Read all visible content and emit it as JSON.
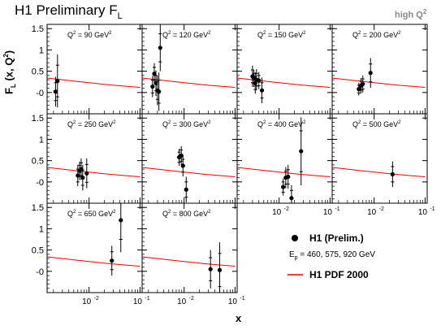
{
  "title": {
    "main": "H1 Preliminary F",
    "sub": "L"
  },
  "corner_label": {
    "main": "high Q",
    "sup": "2"
  },
  "colors": {
    "curve": "#ee0000",
    "axis": "#000000",
    "corner": "#888888"
  },
  "chart_data": {
    "type": "scatter",
    "ylabel": {
      "main": "F",
      "sub": "L",
      "rest": " (x, Q",
      "sup": "2",
      "close": ")"
    },
    "xlabel": "x",
    "xscale": "log",
    "xlim": [
      0.0015,
      0.11
    ],
    "ylim": [
      -0.5,
      1.6
    ],
    "y_ticks": [
      "-0",
      "0.5",
      "1",
      "1.5"
    ],
    "x_ticks": [
      {
        "value": 0.01,
        "base": "10",
        "exp": "-2"
      },
      {
        "value": 0.1,
        "base": "10",
        "exp": "-1"
      }
    ],
    "panels": [
      {
        "q2": "Q² = 90 GeV²",
        "q2_main": "Q",
        "q2_rest": " = 90 GeV",
        "curve": [
          [
            0.0015,
            0.34
          ],
          [
            0.003,
            0.3
          ],
          [
            0.006,
            0.26
          ],
          [
            0.012,
            0.22
          ],
          [
            0.025,
            0.18
          ],
          [
            0.05,
            0.15
          ],
          [
            0.1,
            0.12
          ]
        ],
        "points": [
          {
            "x": 0.0022,
            "y": 0.02,
            "err": 0.35,
            "xerr": 0.0002
          },
          {
            "x": 0.0024,
            "y": 0.27,
            "err": 0.62,
            "xerr": 0.0002
          }
        ]
      },
      {
        "q2": "Q² = 120 GeV²",
        "q2_main": "Q",
        "q2_rest": " = 120 GeV",
        "curve": [
          [
            0.0015,
            0.34
          ],
          [
            0.003,
            0.3
          ],
          [
            0.006,
            0.26
          ],
          [
            0.012,
            0.22
          ],
          [
            0.025,
            0.18
          ],
          [
            0.05,
            0.15
          ],
          [
            0.1,
            0.12
          ]
        ],
        "points": [
          {
            "x": 0.0024,
            "y": 0.14,
            "err": 0.25,
            "xerr": 0.0002
          },
          {
            "x": 0.0026,
            "y": 0.44,
            "err": 0.25,
            "xerr": 0.0002
          },
          {
            "x": 0.0028,
            "y": 0.22,
            "err": 0.3,
            "xerr": 0.0002
          },
          {
            "x": 0.003,
            "y": 0.05,
            "err": 0.35,
            "xerr": 0.0002
          },
          {
            "x": 0.0032,
            "y": 0.02,
            "err": 0.45,
            "xerr": 0.0002
          },
          {
            "x": 0.0034,
            "y": 1.05,
            "err": 0.55,
            "xerr": 0.0002
          }
        ]
      },
      {
        "q2": "Q² = 150 GeV²",
        "q2_main": "Q",
        "q2_rest": " = 150 GeV",
        "curve": [
          [
            0.0015,
            0.34
          ],
          [
            0.003,
            0.3
          ],
          [
            0.006,
            0.26
          ],
          [
            0.012,
            0.22
          ],
          [
            0.025,
            0.18
          ],
          [
            0.05,
            0.15
          ],
          [
            0.1,
            0.12
          ]
        ],
        "points": [
          {
            "x": 0.003,
            "y": 0.38,
            "err": 0.25,
            "xerr": 0.0002
          },
          {
            "x": 0.0032,
            "y": 0.33,
            "err": 0.2,
            "xerr": 0.0002
          },
          {
            "x": 0.0034,
            "y": 0.22,
            "err": 0.25,
            "xerr": 0.0002
          },
          {
            "x": 0.0036,
            "y": 0.3,
            "err": 0.25,
            "xerr": 0.0002
          },
          {
            "x": 0.004,
            "y": 0.28,
            "err": 0.2,
            "xerr": 0.0002
          },
          {
            "x": 0.0046,
            "y": 0.05,
            "err": 0.3,
            "xerr": 0.0003
          }
        ]
      },
      {
        "q2": "Q² = 200 GeV²",
        "q2_main": "Q",
        "q2_rest": " = 200 GeV",
        "curve": [
          [
            0.0015,
            0.34
          ],
          [
            0.003,
            0.3
          ],
          [
            0.006,
            0.26
          ],
          [
            0.012,
            0.22
          ],
          [
            0.025,
            0.18
          ],
          [
            0.05,
            0.15
          ],
          [
            0.1,
            0.12
          ]
        ],
        "points": [
          {
            "x": 0.005,
            "y": 0.08,
            "err": 0.15,
            "xerr": 0.0003
          },
          {
            "x": 0.0055,
            "y": 0.16,
            "err": 0.18,
            "xerr": 0.0003
          },
          {
            "x": 0.006,
            "y": 0.2,
            "err": 0.2,
            "xerr": 0.0003
          },
          {
            "x": 0.0085,
            "y": 0.46,
            "err": 0.35,
            "xerr": 0.0005
          }
        ]
      },
      {
        "q2": "Q² = 250 GeV²",
        "q2_main": "Q",
        "q2_rest": " = 250 GeV",
        "curve": [
          [
            0.0015,
            0.34
          ],
          [
            0.003,
            0.3
          ],
          [
            0.006,
            0.26
          ],
          [
            0.012,
            0.22
          ],
          [
            0.025,
            0.18
          ],
          [
            0.05,
            0.15
          ],
          [
            0.1,
            0.12
          ]
        ],
        "points": [
          {
            "x": 0.006,
            "y": 0.15,
            "err": 0.25,
            "xerr": 0.0003
          },
          {
            "x": 0.0065,
            "y": 0.26,
            "err": 0.22,
            "xerr": 0.0003
          },
          {
            "x": 0.007,
            "y": 0.3,
            "err": 0.25,
            "xerr": 0.0003
          },
          {
            "x": 0.0075,
            "y": 0.1,
            "err": 0.3,
            "xerr": 0.0003
          },
          {
            "x": 0.009,
            "y": 0.2,
            "err": 0.35,
            "xerr": 0.0005
          }
        ]
      },
      {
        "q2": "Q² = 300 GeV²",
        "q2_main": "Q",
        "q2_rest": " = 300 GeV",
        "curve": [
          [
            0.0015,
            0.34
          ],
          [
            0.003,
            0.3
          ],
          [
            0.006,
            0.26
          ],
          [
            0.012,
            0.22
          ],
          [
            0.025,
            0.18
          ],
          [
            0.05,
            0.15
          ],
          [
            0.1,
            0.12
          ]
        ],
        "points": [
          {
            "x": 0.008,
            "y": 0.58,
            "err": 0.2,
            "xerr": 0.0004
          },
          {
            "x": 0.0088,
            "y": 0.62,
            "err": 0.22,
            "xerr": 0.0004
          },
          {
            "x": 0.0095,
            "y": 0.38,
            "err": 0.25,
            "xerr": 0.0004
          },
          {
            "x": 0.011,
            "y": -0.18,
            "err": 0.3,
            "xerr": 0.0005
          }
        ]
      },
      {
        "q2": "Q² = 400 GeV²",
        "q2_main": "Q",
        "q2_rest": " = 400 GeV",
        "curve": [
          [
            0.0015,
            0.34
          ],
          [
            0.003,
            0.3
          ],
          [
            0.006,
            0.26
          ],
          [
            0.012,
            0.22
          ],
          [
            0.025,
            0.18
          ],
          [
            0.05,
            0.15
          ],
          [
            0.1,
            0.12
          ]
        ],
        "points": [
          {
            "x": 0.012,
            "y": -0.12,
            "err": 0.2,
            "xerr": 0.0006
          },
          {
            "x": 0.0135,
            "y": 0.1,
            "err": 0.25,
            "xerr": 0.0006
          },
          {
            "x": 0.015,
            "y": 0.12,
            "err": 0.28,
            "xerr": 0.0006
          },
          {
            "x": 0.0175,
            "y": -0.38,
            "err": 0.3,
            "xerr": 0.0008
          },
          {
            "x": 0.027,
            "y": 0.72,
            "err": 0.8,
            "xerr": 0.0012
          }
        ]
      },
      {
        "q2": "Q² = 500 GeV²",
        "q2_main": "Q",
        "q2_rest": " = 500 GeV",
        "curve": [
          [
            0.0015,
            0.34
          ],
          [
            0.003,
            0.3
          ],
          [
            0.006,
            0.26
          ],
          [
            0.012,
            0.22
          ],
          [
            0.025,
            0.18
          ],
          [
            0.05,
            0.15
          ],
          [
            0.1,
            0.12
          ]
        ],
        "points": [
          {
            "x": 0.023,
            "y": 0.18,
            "err": 0.3,
            "xerr": 0.001
          }
        ]
      },
      {
        "q2": "Q² = 650 GeV²",
        "q2_main": "Q",
        "q2_rest": " = 650 GeV",
        "curve": [
          [
            0.0015,
            0.34
          ],
          [
            0.003,
            0.3
          ],
          [
            0.006,
            0.26
          ],
          [
            0.012,
            0.22
          ],
          [
            0.025,
            0.18
          ],
          [
            0.05,
            0.15
          ],
          [
            0.1,
            0.12
          ]
        ],
        "points": [
          {
            "x": 0.028,
            "y": 0.25,
            "err": 0.35,
            "xerr": 0.0012
          },
          {
            "x": 0.042,
            "y": 1.2,
            "err": 0.75,
            "xerr": 0.002
          }
        ]
      },
      {
        "q2": "Q² = 800 GeV²",
        "q2_main": "Q",
        "q2_rest": " = 800 GeV",
        "curve": [
          [
            0.0015,
            0.34
          ],
          [
            0.003,
            0.3
          ],
          [
            0.006,
            0.26
          ],
          [
            0.012,
            0.22
          ],
          [
            0.025,
            0.18
          ],
          [
            0.05,
            0.15
          ],
          [
            0.1,
            0.12
          ]
        ],
        "points": [
          {
            "x": 0.033,
            "y": 0.05,
            "err": 0.45,
            "xerr": 0.0015
          },
          {
            "x": 0.05,
            "y": 0.03,
            "err": 0.65,
            "xerr": 0.0025
          }
        ]
      }
    ],
    "legend": {
      "data_label": "H1 (Prelim.)",
      "ep_main": "E",
      "ep_sub": "p",
      "ep_rest": " = 460, 575, 920 GeV",
      "curve_label": "H1 PDF 2000"
    }
  }
}
